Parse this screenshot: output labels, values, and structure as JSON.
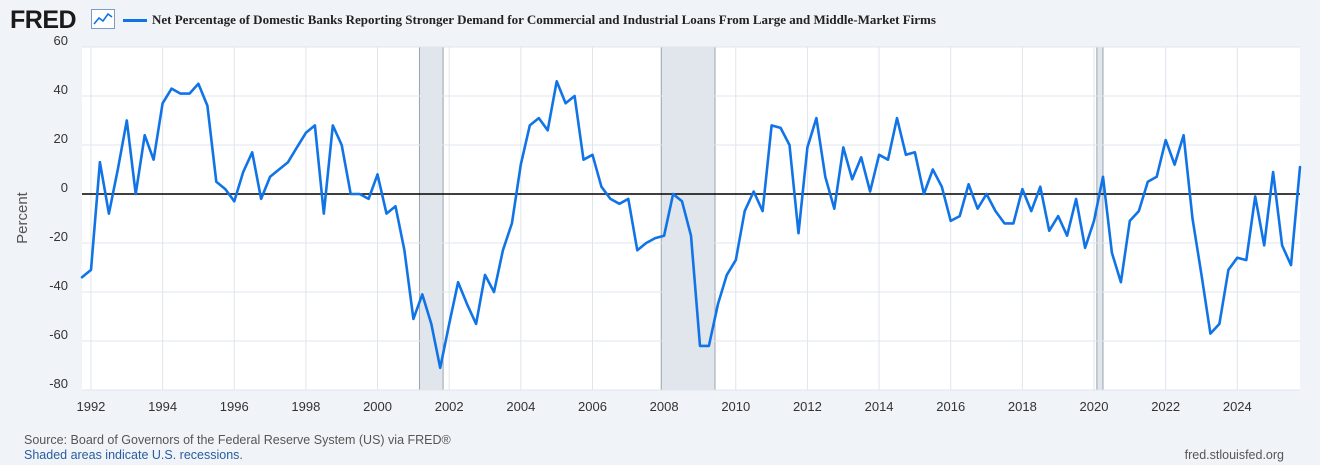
{
  "header": {
    "logo_text": "FRED",
    "logo_icon": "line-graph-icon",
    "brand_color": "#1a1a1a"
  },
  "footer": {
    "source": "Source: Board of Governors of the Federal Reserve System (US) via FRED®",
    "note": "Shaded areas indicate U.S. recessions.",
    "site": "fred.stlouisfed.org"
  },
  "colors": {
    "series": "#1174e6",
    "recession_fill": "#e1e6ec",
    "recession_edge": "#9aa4ae",
    "grid": "#dfe5ec",
    "zero_line": "#000000"
  },
  "chart_data": {
    "type": "line",
    "title": "Net Percentage of Domestic Banks Reporting Stronger Demand for Commercial and Industrial Loans From Large and Middle-Market Firms",
    "xlabel": "",
    "ylabel": "Percent",
    "xlim": [
      1991.75,
      2025.75
    ],
    "ylim": [
      -80,
      60
    ],
    "grid": true,
    "x_ticks": [
      1992,
      1994,
      1996,
      1998,
      2000,
      2002,
      2004,
      2006,
      2008,
      2010,
      2012,
      2014,
      2016,
      2018,
      2020,
      2022,
      2024
    ],
    "x_tick_labels": [
      "1992",
      "1994",
      "1996",
      "1998",
      "2000",
      "2002",
      "2004",
      "2006",
      "2008",
      "2010",
      "2012",
      "2014",
      "2016",
      "2018",
      "2020",
      "2022",
      "2024"
    ],
    "y_ticks": [
      -80,
      -60,
      -40,
      -20,
      0,
      20,
      40,
      60
    ],
    "y_tick_labels": [
      "-80",
      "-60",
      "-40",
      "-20",
      "0",
      "20",
      "40",
      "60"
    ],
    "recessions": [
      [
        2001.17,
        2001.83
      ],
      [
        2007.92,
        2009.42
      ],
      [
        2020.08,
        2020.25
      ]
    ],
    "series": [
      {
        "name": "Net Percentage of Domestic Banks Reporting Stronger Demand for Commercial and Industrial Loans From Large and Middle-Market Firms",
        "x": [
          1991.75,
          1992.0,
          1992.25,
          1992.5,
          1992.75,
          1993.0,
          1993.25,
          1993.5,
          1993.75,
          1994.0,
          1994.25,
          1994.5,
          1994.75,
          1995.0,
          1995.25,
          1995.5,
          1995.75,
          1996.0,
          1996.25,
          1996.5,
          1996.75,
          1997.0,
          1997.25,
          1997.5,
          1997.75,
          1998.0,
          1998.25,
          1998.5,
          1998.75,
          1999.0,
          1999.25,
          1999.5,
          1999.75,
          2000.0,
          2000.25,
          2000.5,
          2000.75,
          2001.0,
          2001.25,
          2001.5,
          2001.75,
          2002.0,
          2002.25,
          2002.5,
          2002.75,
          2003.0,
          2003.25,
          2003.5,
          2003.75,
          2004.0,
          2004.25,
          2004.5,
          2004.75,
          2005.0,
          2005.25,
          2005.5,
          2005.75,
          2006.0,
          2006.25,
          2006.5,
          2006.75,
          2007.0,
          2007.25,
          2007.5,
          2007.75,
          2008.0,
          2008.25,
          2008.5,
          2008.75,
          2009.0,
          2009.25,
          2009.5,
          2009.75,
          2010.0,
          2010.25,
          2010.5,
          2010.75,
          2011.0,
          2011.25,
          2011.5,
          2011.75,
          2012.0,
          2012.25,
          2012.5,
          2012.75,
          2013.0,
          2013.25,
          2013.5,
          2013.75,
          2014.0,
          2014.25,
          2014.5,
          2014.75,
          2015.0,
          2015.25,
          2015.5,
          2015.75,
          2016.0,
          2016.25,
          2016.5,
          2016.75,
          2017.0,
          2017.25,
          2017.5,
          2017.75,
          2018.0,
          2018.25,
          2018.5,
          2018.75,
          2019.0,
          2019.25,
          2019.5,
          2019.75,
          2020.0,
          2020.25,
          2020.5,
          2020.75,
          2021.0,
          2021.25,
          2021.5,
          2021.75,
          2022.0,
          2022.25,
          2022.5,
          2022.75,
          2023.0,
          2023.25,
          2023.5,
          2023.75,
          2024.0,
          2024.25,
          2024.5,
          2024.75,
          2025.0,
          2025.25,
          2025.5,
          2025.75
        ],
        "values": [
          -34,
          -31,
          13,
          -8,
          10,
          30,
          0,
          24,
          14,
          37,
          43,
          41,
          41,
          45,
          36,
          5,
          2,
          -3,
          9,
          17,
          -2,
          7,
          10,
          13,
          19,
          25,
          28,
          -8,
          28,
          20,
          0,
          0,
          -2,
          8,
          -8,
          -5,
          -23,
          -51,
          -41,
          -53,
          -71,
          -53,
          -36,
          -45,
          -53,
          -33,
          -40,
          -23,
          -12,
          12,
          28,
          31,
          26,
          46,
          37,
          40,
          14,
          16,
          3,
          -2,
          -4,
          -2,
          -23,
          -20,
          -18,
          -17,
          0,
          -3,
          -17,
          -62,
          -62,
          -45,
          -33,
          -27,
          -7,
          1,
          -7,
          28,
          27,
          20,
          -16,
          19,
          31,
          7,
          -6,
          19,
          6,
          15,
          1,
          16,
          14,
          31,
          16,
          17,
          0,
          10,
          3,
          -11,
          -9,
          4,
          -6,
          0,
          -7,
          -12,
          -12,
          2,
          -7,
          3,
          -15,
          -9,
          -17,
          -2,
          -22,
          -11,
          7,
          -24,
          -36,
          -11,
          -7,
          5,
          7,
          22,
          12,
          24,
          -10,
          -33,
          -57,
          -53,
          -31,
          -26,
          -27,
          -1,
          -21,
          9,
          -21,
          -29,
          11
        ]
      }
    ]
  }
}
